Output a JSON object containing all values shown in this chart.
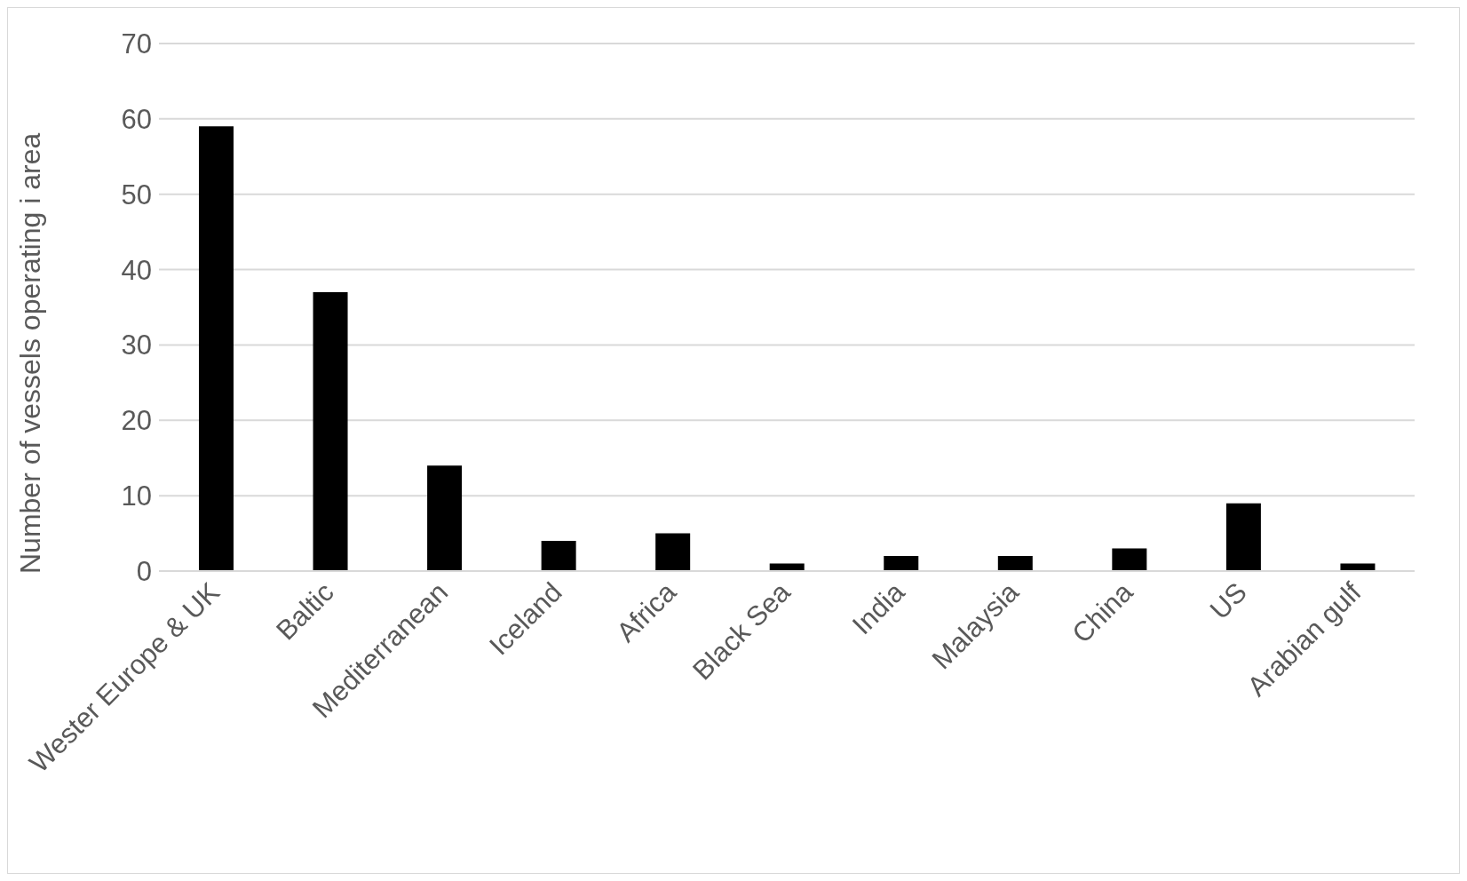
{
  "chart_data": {
    "type": "bar",
    "ylabel": "Number of vessels operating i area",
    "categories": [
      "Wester Europe & UK",
      "Baltic",
      "Mediterranean",
      "Iceland",
      "Africa",
      "Black Sea",
      "India",
      "Malaysia",
      "China",
      "US",
      "Arabian gulf"
    ],
    "values": [
      59,
      37,
      14,
      4,
      5,
      1,
      2,
      2,
      3,
      9,
      1
    ],
    "color": "#000000",
    "ylim": [
      0,
      70
    ],
    "yticks": [
      0,
      10,
      20,
      30,
      40,
      50,
      60,
      70
    ],
    "grid": "y",
    "legend": false
  }
}
